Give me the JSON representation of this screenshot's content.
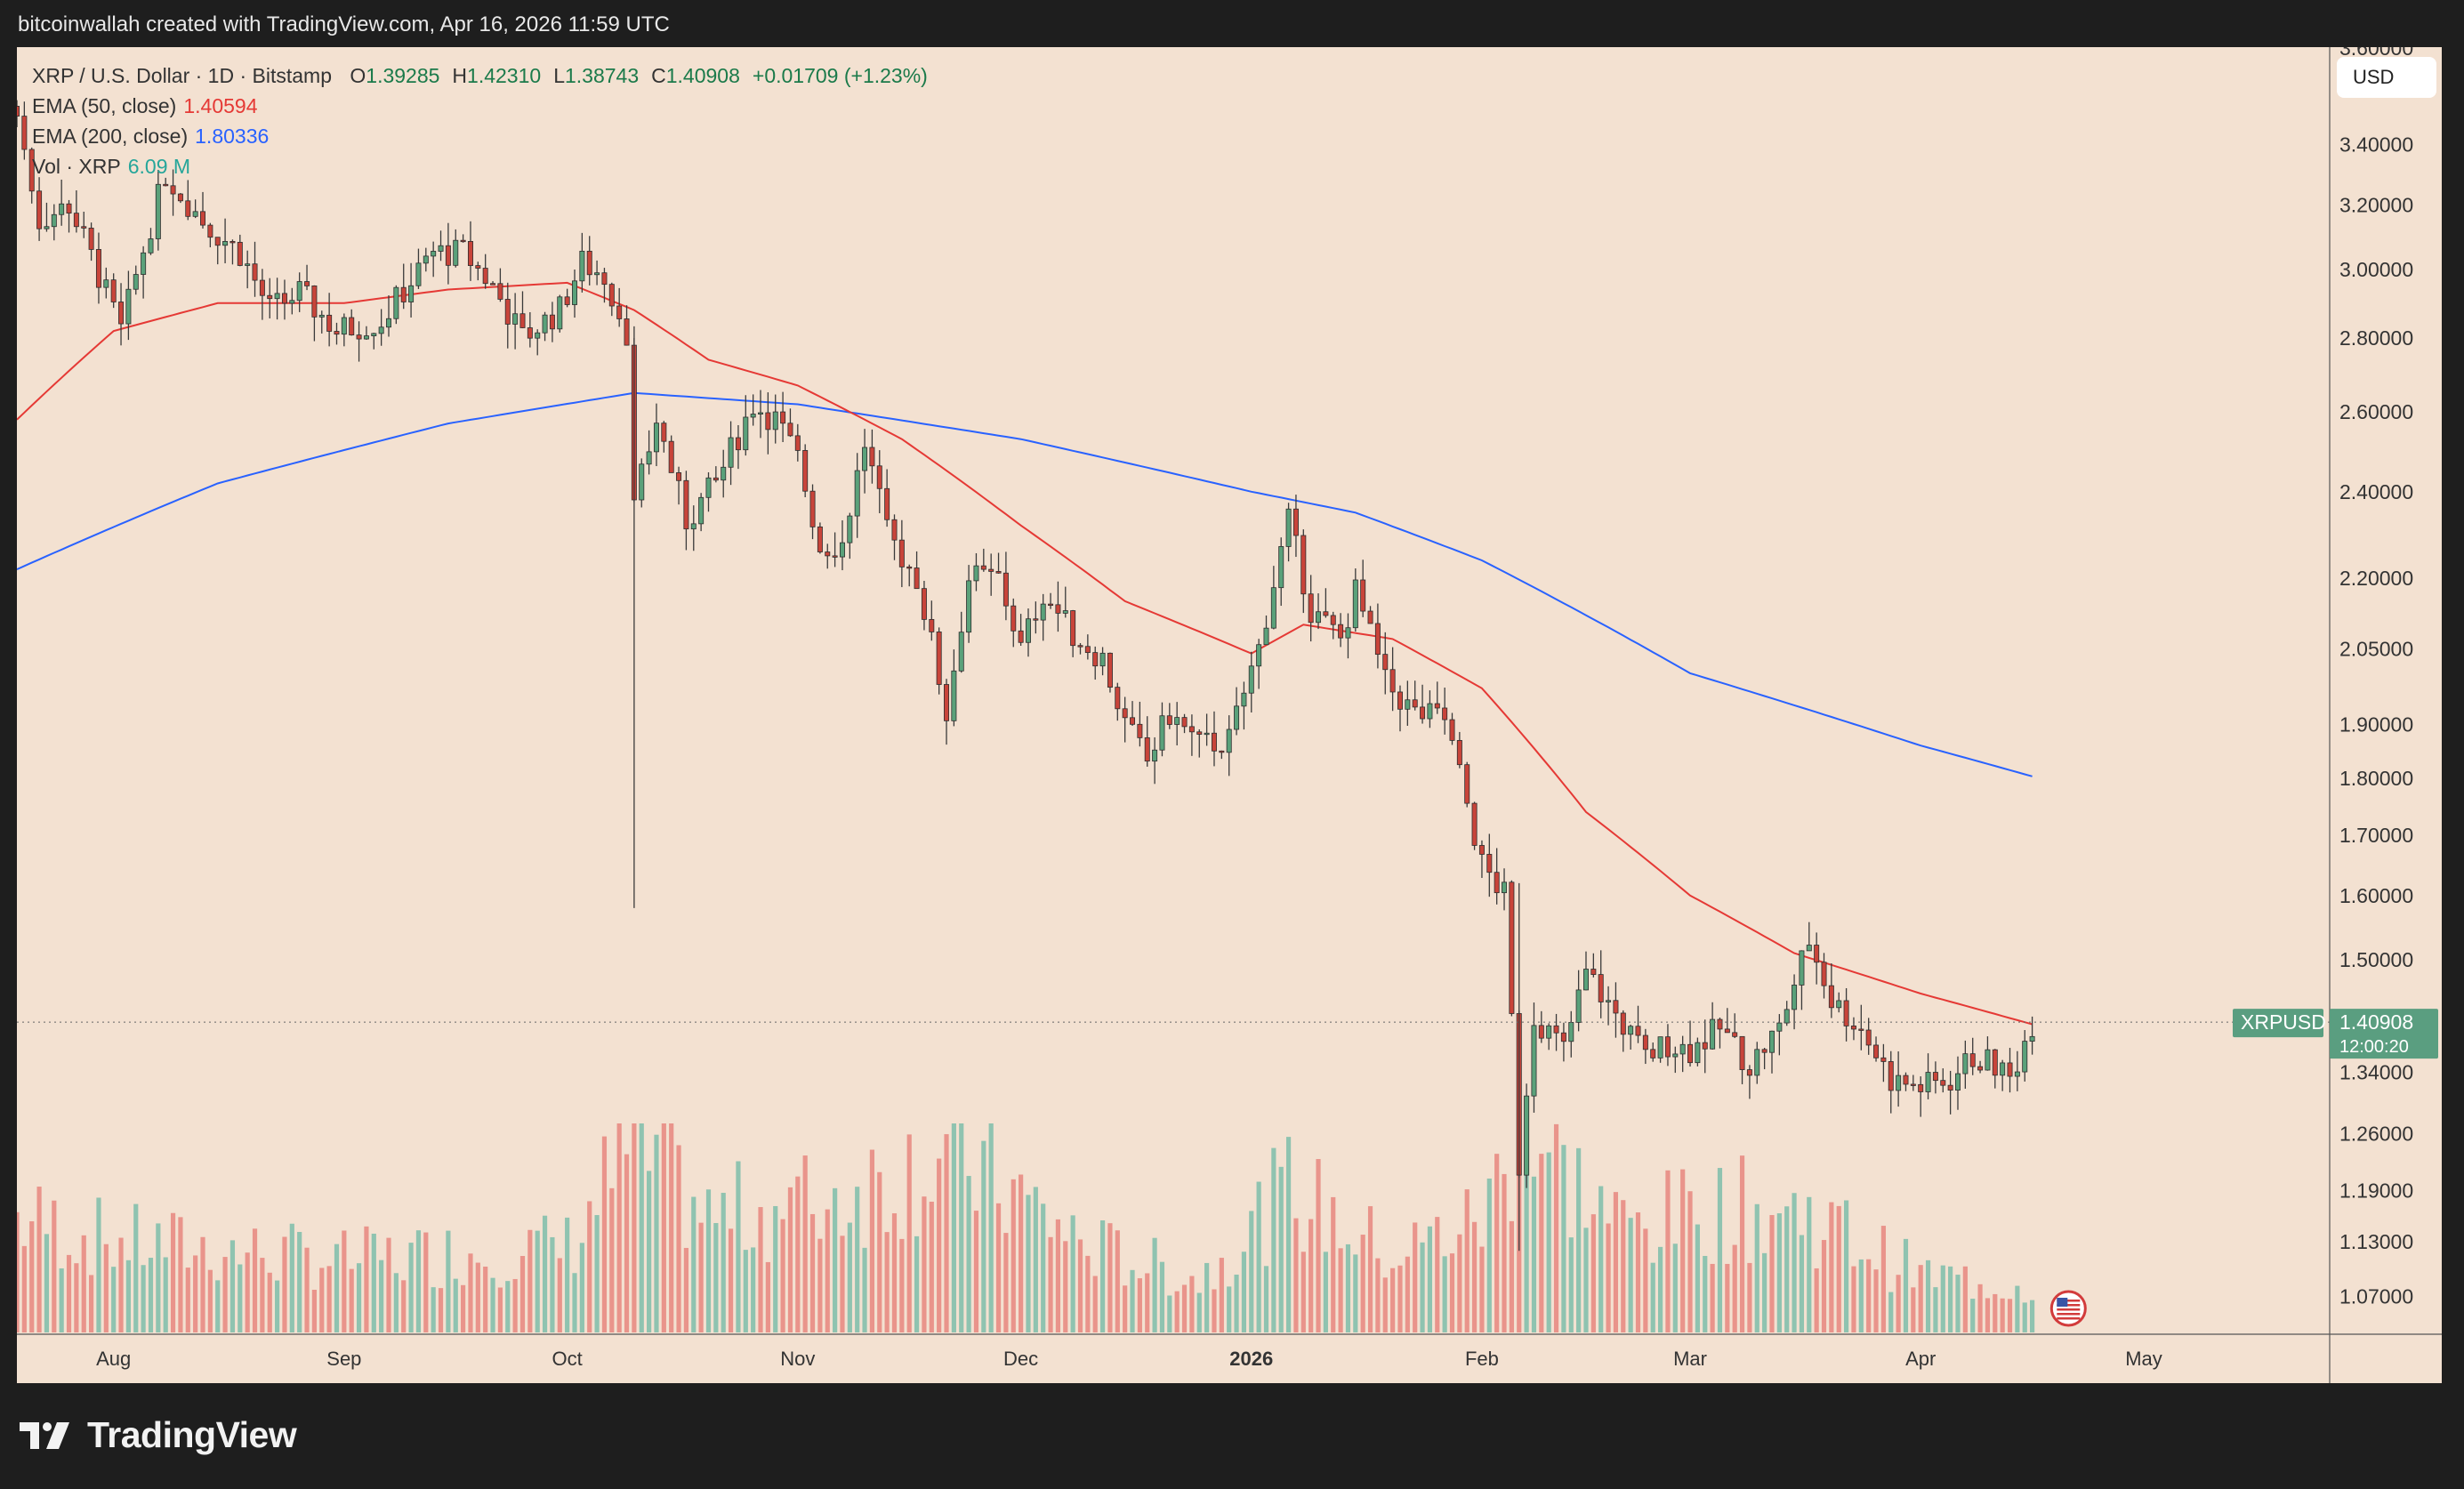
{
  "header": {
    "attribution": "bitcoinwallah created with TradingView.com, Apr 16, 2026 11:59 UTC"
  },
  "legend": {
    "symbol": "XRP / U.S. Dollar · 1D · Bitstamp",
    "ohlc": [
      {
        "label": "O",
        "value": "1.39285"
      },
      {
        "label": "H",
        "value": "1.42310"
      },
      {
        "label": "L",
        "value": "1.38743"
      },
      {
        "label": "C",
        "value": "1.40908"
      },
      {
        "label": "",
        "value": "+0.01709 (+1.23%)"
      }
    ],
    "ema50_label": "EMA (50, close)",
    "ema50_value": "1.40594",
    "ema200_label": "EMA (200, close)",
    "ema200_value": "1.80336",
    "vol_label": "Vol · XRP",
    "vol_value": "6.09 M"
  },
  "currency_button": "USD",
  "price_tag": {
    "symbol": "XRPUSD",
    "price": "1.40908",
    "countdown": "12:00:20"
  },
  "brand": {
    "name": "TradingView"
  },
  "colors": {
    "up": "#26a69a",
    "down": "#ef5350",
    "up_body": "#5aa17a",
    "down_body": "#c8443a",
    "ema50": "#e53935",
    "ema200": "#2962ff",
    "background": "#f3e1d1",
    "frame": "#1e1e1e"
  },
  "chart_data": {
    "type": "candlestick",
    "symbol": "XRPUSD",
    "y_scale": "log",
    "ylim": [
      1.03,
      3.75
    ],
    "xlim": [
      "2025-07-19",
      "2026-05-26"
    ],
    "y_ticks": [
      "3.40000",
      "3.20000",
      "3.00000",
      "2.80000",
      "2.60000",
      "2.40000",
      "2.20000",
      "2.05000",
      "1.90000",
      "1.80000",
      "1.70000",
      "1.60000",
      "1.50000",
      "1.34000",
      "1.26000",
      "1.19000",
      "1.13000",
      "1.07000"
    ],
    "x_ticks": [
      {
        "label": "Aug",
        "date": "2025-08-01"
      },
      {
        "label": "Sep",
        "date": "2025-09-01"
      },
      {
        "label": "Oct",
        "date": "2025-10-01"
      },
      {
        "label": "Nov",
        "date": "2025-11-01"
      },
      {
        "label": "Dec",
        "date": "2025-12-01"
      },
      {
        "label": "2026",
        "date": "2026-01-01",
        "bold": true
      },
      {
        "label": "Feb",
        "date": "2026-02-01"
      },
      {
        "label": "Mar",
        "date": "2026-03-01"
      },
      {
        "label": "Apr",
        "date": "2026-04-01"
      },
      {
        "label": "May",
        "date": "2026-05-01"
      }
    ],
    "ohlc_waypoints": [
      {
        "date": "2025-07-19",
        "close": 3.5
      },
      {
        "date": "2025-07-22",
        "close": 3.15
      },
      {
        "date": "2025-07-26",
        "close": 3.2
      },
      {
        "date": "2025-08-02",
        "close": 2.82
      },
      {
        "date": "2025-08-08",
        "close": 3.3
      },
      {
        "date": "2025-08-13",
        "close": 3.15
      },
      {
        "date": "2025-08-18",
        "close": 3.05
      },
      {
        "date": "2025-08-22",
        "close": 2.88
      },
      {
        "date": "2025-08-26",
        "close": 2.93
      },
      {
        "date": "2025-08-31",
        "close": 2.82
      },
      {
        "date": "2025-09-06",
        "close": 2.85
      },
      {
        "date": "2025-09-13",
        "close": 3.05
      },
      {
        "date": "2025-09-17",
        "close": 3.05
      },
      {
        "date": "2025-09-21",
        "close": 2.95
      },
      {
        "date": "2025-09-25",
        "close": 2.8
      },
      {
        "date": "2025-09-30",
        "close": 2.88
      },
      {
        "date": "2025-10-03",
        "close": 3.02
      },
      {
        "date": "2025-10-06",
        "close": 2.98
      },
      {
        "date": "2025-10-09",
        "close": 2.82
      },
      {
        "date": "2025-10-10",
        "close": 2.36
      },
      {
        "date": "2025-10-13",
        "close": 2.58
      },
      {
        "date": "2025-10-17",
        "close": 2.33
      },
      {
        "date": "2025-10-21",
        "close": 2.42
      },
      {
        "date": "2025-10-26",
        "close": 2.62
      },
      {
        "date": "2025-10-29",
        "close": 2.58
      },
      {
        "date": "2025-11-01",
        "close": 2.48
      },
      {
        "date": "2025-11-04",
        "close": 2.27
      },
      {
        "date": "2025-11-07",
        "close": 2.28
      },
      {
        "date": "2025-11-10",
        "close": 2.52
      },
      {
        "date": "2025-11-13",
        "close": 2.3
      },
      {
        "date": "2025-11-17",
        "close": 2.2
      },
      {
        "date": "2025-11-21",
        "close": 1.92
      },
      {
        "date": "2025-11-24",
        "close": 2.2
      },
      {
        "date": "2025-11-28",
        "close": 2.2
      },
      {
        "date": "2025-12-01",
        "close": 2.05
      },
      {
        "date": "2025-12-04",
        "close": 2.17
      },
      {
        "date": "2025-12-08",
        "close": 2.08
      },
      {
        "date": "2025-12-12",
        "close": 2.03
      },
      {
        "date": "2025-12-15",
        "close": 1.9
      },
      {
        "date": "2025-12-18",
        "close": 1.83
      },
      {
        "date": "2025-12-21",
        "close": 1.92
      },
      {
        "date": "2025-12-25",
        "close": 1.86
      },
      {
        "date": "2025-12-29",
        "close": 1.87
      },
      {
        "date": "2026-01-02",
        "close": 2.05
      },
      {
        "date": "2026-01-06",
        "close": 2.33
      },
      {
        "date": "2026-01-09",
        "close": 2.13
      },
      {
        "date": "2026-01-13",
        "close": 2.07
      },
      {
        "date": "2026-01-15",
        "close": 2.17
      },
      {
        "date": "2026-01-19",
        "close": 1.98
      },
      {
        "date": "2026-01-23",
        "close": 1.92
      },
      {
        "date": "2026-01-27",
        "close": 1.91
      },
      {
        "date": "2026-02-01",
        "close": 1.65
      },
      {
        "date": "2026-02-04",
        "close": 1.6
      },
      {
        "date": "2026-02-06",
        "close": 1.22
      },
      {
        "date": "2026-02-08",
        "close": 1.42
      },
      {
        "date": "2026-02-12",
        "close": 1.37
      },
      {
        "date": "2026-02-15",
        "close": 1.48
      },
      {
        "date": "2026-02-19",
        "close": 1.42
      },
      {
        "date": "2026-02-23",
        "close": 1.36
      },
      {
        "date": "2026-02-26",
        "close": 1.38
      },
      {
        "date": "2026-03-01",
        "close": 1.37
      },
      {
        "date": "2026-03-05",
        "close": 1.4
      },
      {
        "date": "2026-03-09",
        "close": 1.35
      },
      {
        "date": "2026-03-13",
        "close": 1.4
      },
      {
        "date": "2026-03-17",
        "close": 1.53
      },
      {
        "date": "2026-03-20",
        "close": 1.44
      },
      {
        "date": "2026-03-24",
        "close": 1.4
      },
      {
        "date": "2026-03-28",
        "close": 1.33
      },
      {
        "date": "2026-04-01",
        "close": 1.32
      },
      {
        "date": "2026-04-05",
        "close": 1.33
      },
      {
        "date": "2026-04-08",
        "close": 1.36
      },
      {
        "date": "2026-04-11",
        "close": 1.35
      },
      {
        "date": "2026-04-13",
        "close": 1.33
      },
      {
        "date": "2026-04-16",
        "close": 1.40908
      }
    ],
    "ema50_waypoints": [
      {
        "date": "2025-07-19",
        "value": 2.58
      },
      {
        "date": "2025-08-01",
        "value": 2.82
      },
      {
        "date": "2025-08-15",
        "value": 2.9
      },
      {
        "date": "2025-09-01",
        "value": 2.9
      },
      {
        "date": "2025-09-15",
        "value": 2.94
      },
      {
        "date": "2025-10-01",
        "value": 2.96
      },
      {
        "date": "2025-10-10",
        "value": 2.88
      },
      {
        "date": "2025-10-20",
        "value": 2.74
      },
      {
        "date": "2025-11-01",
        "value": 2.67
      },
      {
        "date": "2025-11-15",
        "value": 2.53
      },
      {
        "date": "2025-12-01",
        "value": 2.32
      },
      {
        "date": "2025-12-15",
        "value": 2.15
      },
      {
        "date": "2026-01-01",
        "value": 2.04
      },
      {
        "date": "2026-01-08",
        "value": 2.1
      },
      {
        "date": "2026-01-20",
        "value": 2.07
      },
      {
        "date": "2026-02-01",
        "value": 1.97
      },
      {
        "date": "2026-02-15",
        "value": 1.74
      },
      {
        "date": "2026-03-01",
        "value": 1.6
      },
      {
        "date": "2026-03-15",
        "value": 1.51
      },
      {
        "date": "2026-04-01",
        "value": 1.45
      },
      {
        "date": "2026-04-16",
        "value": 1.40594
      }
    ],
    "ema200_waypoints": [
      {
        "date": "2025-07-19",
        "value": 2.22
      },
      {
        "date": "2025-08-15",
        "value": 2.42
      },
      {
        "date": "2025-09-15",
        "value": 2.57
      },
      {
        "date": "2025-10-10",
        "value": 2.65
      },
      {
        "date": "2025-11-01",
        "value": 2.62
      },
      {
        "date": "2025-12-01",
        "value": 2.53
      },
      {
        "date": "2026-01-01",
        "value": 2.4
      },
      {
        "date": "2026-01-15",
        "value": 2.35
      },
      {
        "date": "2026-02-01",
        "value": 2.24
      },
      {
        "date": "2026-03-01",
        "value": 2.0
      },
      {
        "date": "2026-04-01",
        "value": 1.86
      },
      {
        "date": "2026-04-16",
        "value": 1.80336
      }
    ],
    "volume_waypoints": [
      {
        "date": "2025-07-19",
        "value": 60
      },
      {
        "date": "2025-08-01",
        "value": 48
      },
      {
        "date": "2025-09-01",
        "value": 38
      },
      {
        "date": "2025-10-01",
        "value": 45
      },
      {
        "date": "2025-10-10",
        "value": 100
      },
      {
        "date": "2025-10-20",
        "value": 60
      },
      {
        "date": "2025-11-05",
        "value": 70
      },
      {
        "date": "2025-11-15",
        "value": 85
      },
      {
        "date": "2025-11-22",
        "value": 95
      },
      {
        "date": "2025-12-10",
        "value": 45
      },
      {
        "date": "2025-12-25",
        "value": 28
      },
      {
        "date": "2026-01-06",
        "value": 75
      },
      {
        "date": "2026-01-20",
        "value": 40
      },
      {
        "date": "2026-02-01",
        "value": 60
      },
      {
        "date": "2026-02-06",
        "value": 105
      },
      {
        "date": "2026-02-20",
        "value": 55
      },
      {
        "date": "2026-03-05",
        "value": 65
      },
      {
        "date": "2026-03-17",
        "value": 62
      },
      {
        "date": "2026-04-01",
        "value": 30
      },
      {
        "date": "2026-04-16",
        "value": 24
      }
    ]
  }
}
